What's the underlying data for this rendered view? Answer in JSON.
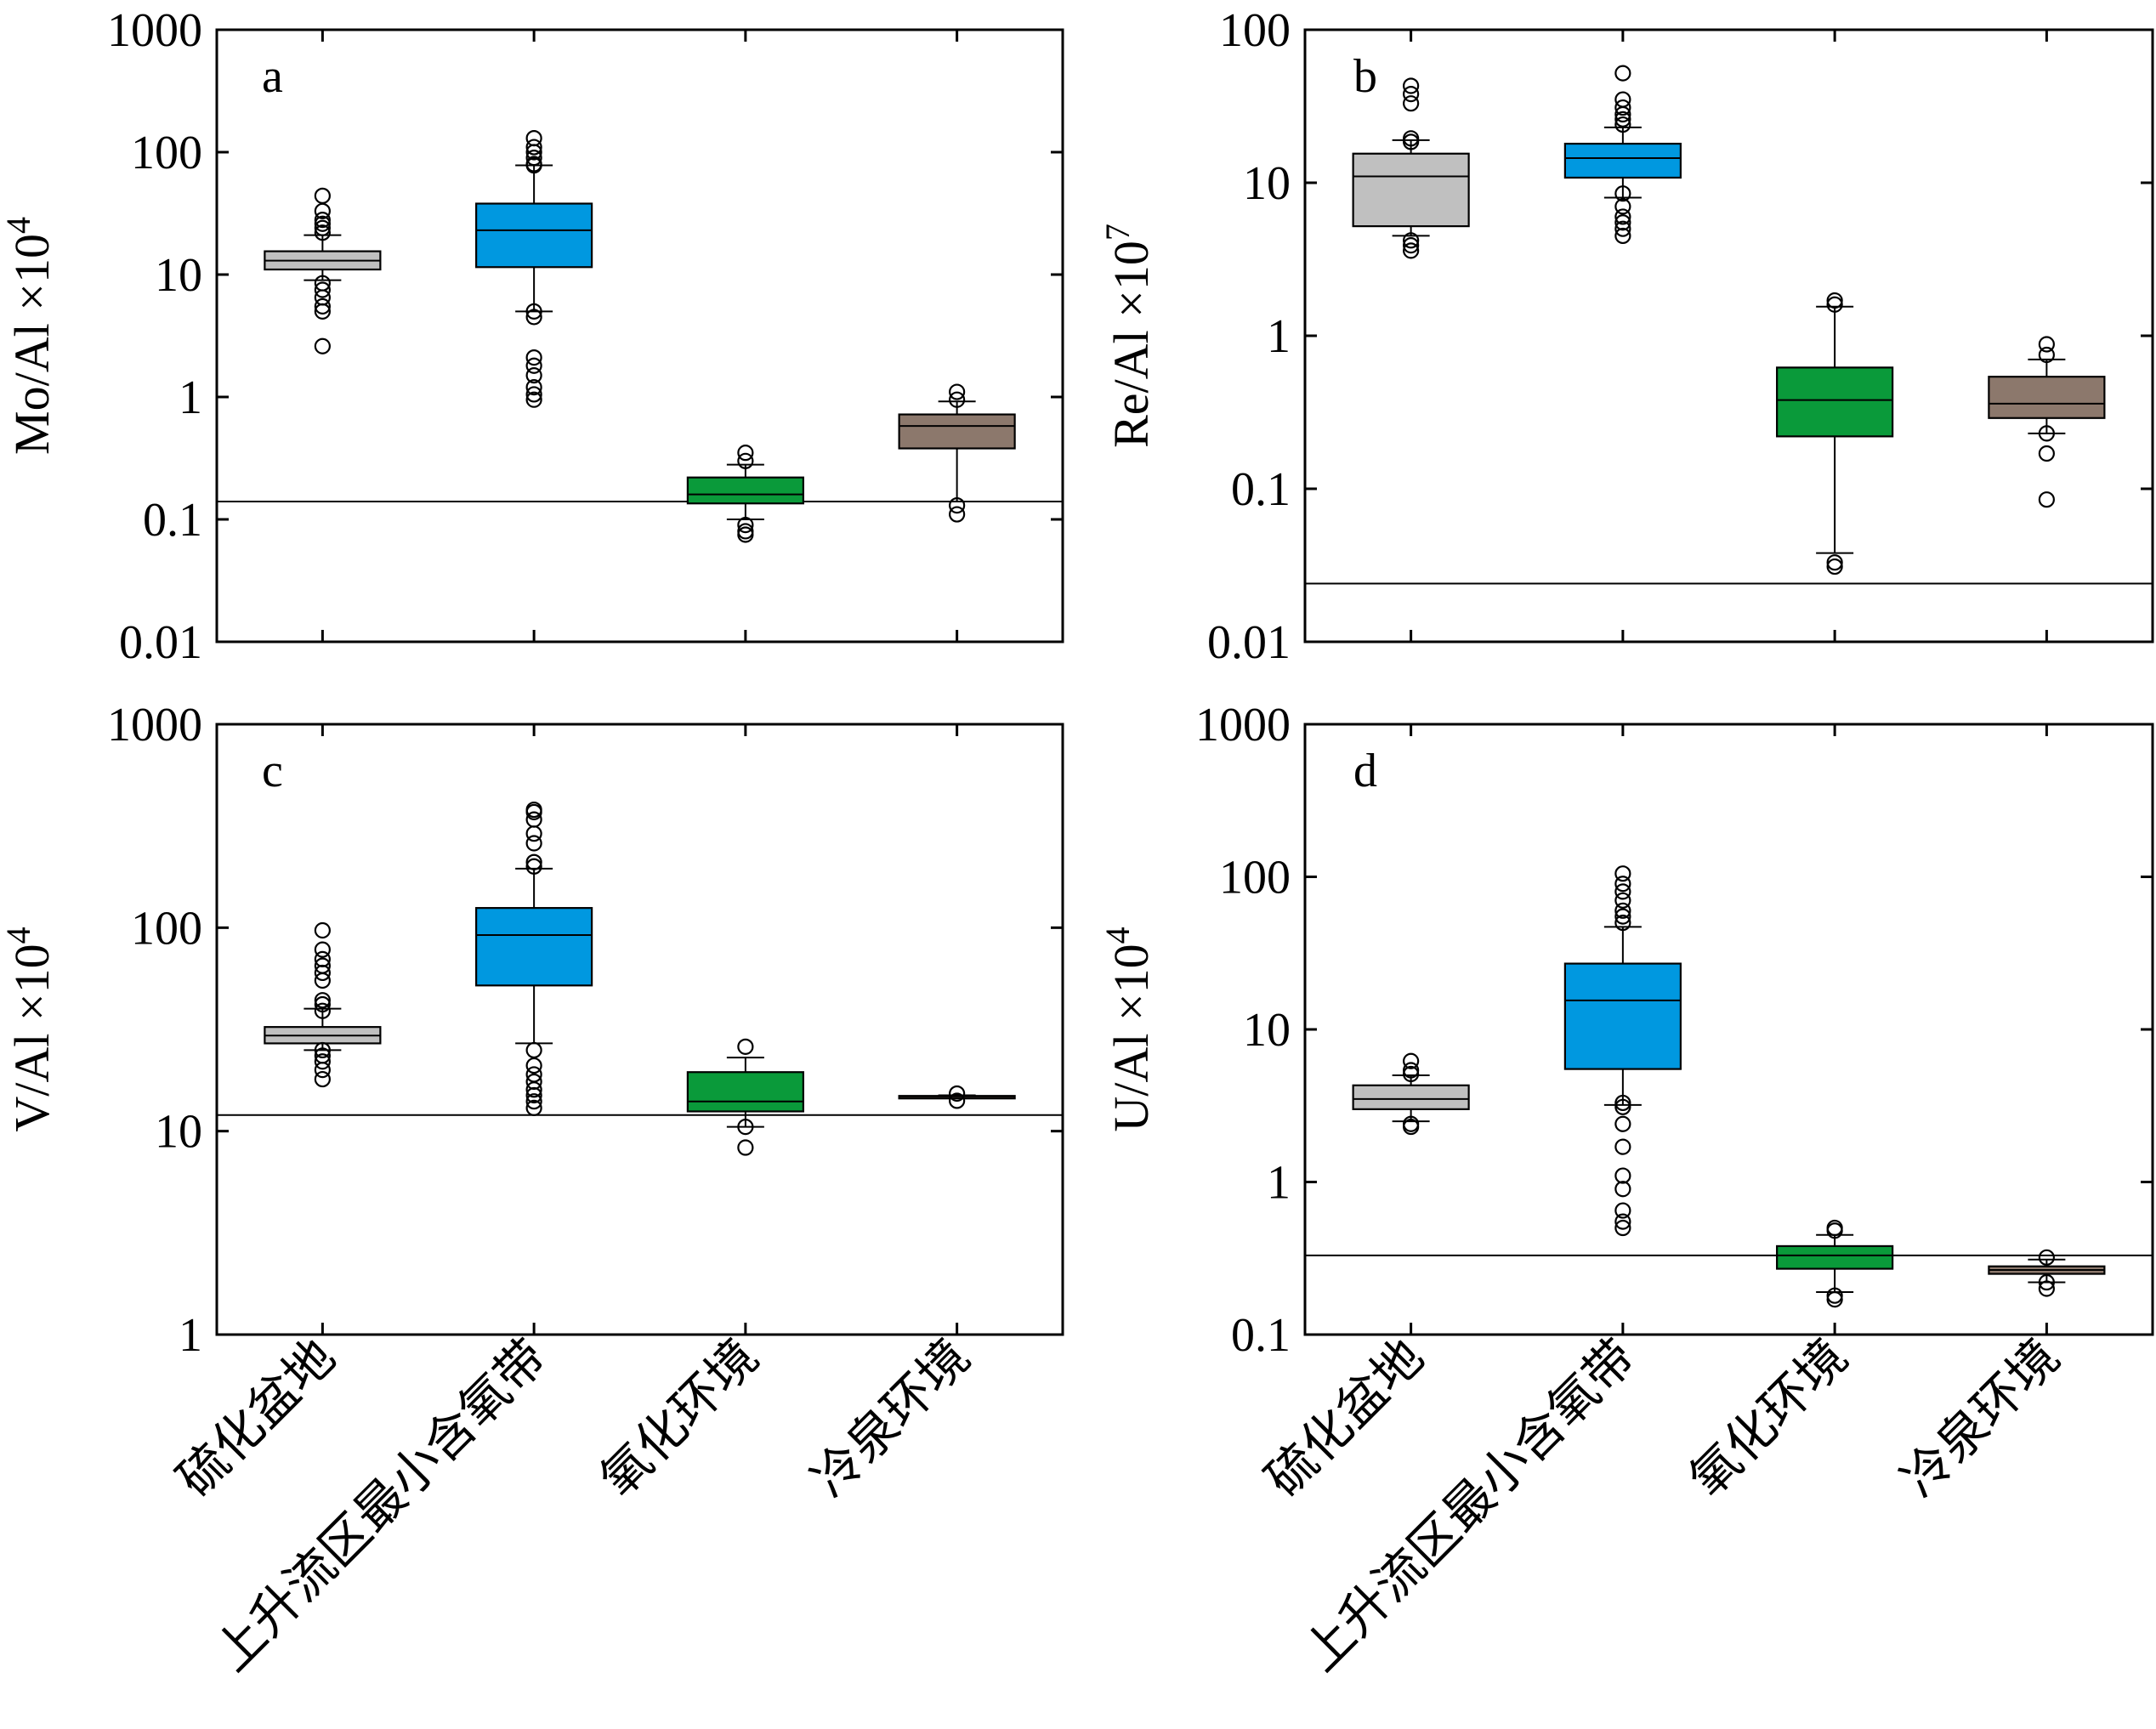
{
  "categories": [
    "硫化盆地",
    "上升流区最小含氧带",
    "氧化环境",
    "冷泉环境"
  ],
  "colors": {
    "硫化盆地": "#c0c0c0",
    "上升流区最小含氧带": "#0098e0",
    "氧化环境": "#0a9a3a",
    "冷泉环境": "#8c786c"
  },
  "chart_data": [
    {
      "panel": "a",
      "type": "box",
      "ylabel": "Mo/Al ×10⁴",
      "yscale": "log",
      "ylim": [
        0.01,
        1000
      ],
      "ticks": [
        "0.01",
        "0.1",
        "1",
        "10",
        "100",
        "1000"
      ],
      "tick_values": [
        0.01,
        0.1,
        1,
        10,
        100,
        1000
      ],
      "reference_line": 0.14,
      "series": [
        {
          "category": "硫化盆地",
          "whisker_low": 9,
          "q1": 11,
          "median": 13,
          "q3": 15.5,
          "whisker_high": 21,
          "outliers": [
            2.6,
            5,
            5.5,
            6.5,
            7.5,
            8.5,
            22,
            24,
            26,
            28,
            33,
            44
          ]
        },
        {
          "category": "上升流区最小含氧带",
          "whisker_low": 5,
          "q1": 11.5,
          "median": 23,
          "q3": 38,
          "whisker_high": 78,
          "outliers": [
            0.95,
            1.05,
            1.2,
            1.5,
            1.8,
            2.1,
            4.5,
            5,
            78,
            80,
            90,
            100,
            110,
            130
          ]
        },
        {
          "category": "氧化环境",
          "whisker_low": 0.1,
          "q1": 0.135,
          "median": 0.16,
          "q3": 0.22,
          "whisker_high": 0.28,
          "outliers": [
            0.075,
            0.08,
            0.09,
            0.3,
            0.35
          ]
        },
        {
          "category": "冷泉环境",
          "whisker_low": 0.14,
          "q1": 0.38,
          "median": 0.58,
          "q3": 0.72,
          "whisker_high": 0.92,
          "outliers": [
            0.11,
            0.13,
            0.95,
            1.1
          ]
        }
      ]
    },
    {
      "panel": "b",
      "type": "box",
      "ylabel": "Re/Al ×10⁷",
      "yscale": "log",
      "ylim": [
        0.01,
        100
      ],
      "ticks": [
        "0.01",
        "0.1",
        "1",
        "10",
        "100"
      ],
      "tick_values": [
        0.01,
        0.1,
        1,
        10,
        100
      ],
      "reference_line": 0.024,
      "series": [
        {
          "category": "硫化盆地",
          "whisker_low": 4.5,
          "q1": 5.2,
          "median": 11,
          "q3": 15.5,
          "whisker_high": 19,
          "outliers": [
            3.6,
            3.9,
            4.2,
            18.5,
            19.5,
            33,
            38,
            43
          ]
        },
        {
          "category": "上升流区最小含氧带",
          "whisker_low": 8,
          "q1": 10.8,
          "median": 14.5,
          "q3": 18,
          "whisker_high": 23,
          "outliers": [
            4.5,
            5,
            5.5,
            6,
            7,
            8.5,
            24,
            26,
            28,
            31,
            35,
            52
          ]
        },
        {
          "category": "氧化环境",
          "whisker_low": 0.038,
          "q1": 0.22,
          "median": 0.38,
          "q3": 0.62,
          "whisker_high": 1.55,
          "outliers": [
            0.031,
            0.033,
            1.6,
            1.7
          ]
        },
        {
          "category": "冷泉环境",
          "whisker_low": 0.23,
          "q1": 0.29,
          "median": 0.36,
          "q3": 0.54,
          "whisker_high": 0.7,
          "outliers": [
            0.085,
            0.17,
            0.23,
            0.75,
            0.88
          ]
        }
      ]
    },
    {
      "panel": "c",
      "type": "box",
      "ylabel": "V/Al ×10⁴",
      "yscale": "log",
      "ylim": [
        1,
        1000
      ],
      "ticks": [
        "1",
        "10",
        "100",
        "1000"
      ],
      "tick_values": [
        1,
        10,
        100,
        1000
      ],
      "reference_line": 12,
      "series": [
        {
          "category": "硫化盆地",
          "whisker_low": 25,
          "q1": 27,
          "median": 29.5,
          "q3": 32.5,
          "whisker_high": 40,
          "outliers": [
            18,
            20,
            22,
            23.5,
            25,
            39,
            42,
            44,
            55,
            60,
            65,
            70,
            78,
            97
          ]
        },
        {
          "category": "上升流区最小含氧带",
          "whisker_low": 27,
          "q1": 52,
          "median": 92,
          "q3": 125,
          "whisker_high": 195,
          "outliers": [
            13,
            14,
            15,
            16,
            17.5,
            19,
            21,
            25,
            200,
            210,
            260,
            290,
            340,
            370,
            380
          ]
        },
        {
          "category": "氧化环境",
          "whisker_low": 10.5,
          "q1": 12.5,
          "median": 14,
          "q3": 19.5,
          "whisker_high": 23,
          "outliers": [
            8.3,
            10.5,
            26
          ]
        },
        {
          "category": "冷泉环境",
          "whisker_low": 14.6,
          "q1": 14.7,
          "median": 14.8,
          "q3": 14.9,
          "whisker_high": 15,
          "outliers": [
            14.1,
            15.3
          ]
        }
      ]
    },
    {
      "panel": "d",
      "type": "box",
      "ylabel": "U/Al ×10⁴",
      "yscale": "log",
      "ylim": [
        0.1,
        1000
      ],
      "ticks": [
        "0.1",
        "1",
        "10",
        "100",
        "1000"
      ],
      "tick_values": [
        0.1,
        1,
        10,
        100,
        1000
      ],
      "reference_line": 0.33,
      "series": [
        {
          "category": "硫化盆地",
          "whisker_low": 2.5,
          "q1": 3,
          "median": 3.5,
          "q3": 4.3,
          "whisker_high": 5,
          "outliers": [
            2.3,
            2.4,
            5.1,
            5.4,
            6.2
          ]
        },
        {
          "category": "上升流区最小含氧带",
          "whisker_low": 3.2,
          "q1": 5.5,
          "median": 15.5,
          "q3": 27,
          "whisker_high": 47,
          "outliers": [
            0.5,
            0.55,
            0.65,
            0.9,
            1.1,
            1.7,
            2.4,
            3.1,
            3.3,
            50,
            55,
            60,
            70,
            80,
            90,
            105
          ]
        },
        {
          "category": "氧化环境",
          "whisker_low": 0.19,
          "q1": 0.27,
          "median": 0.33,
          "q3": 0.38,
          "whisker_high": 0.45,
          "outliers": [
            0.17,
            0.18,
            0.48,
            0.5
          ]
        },
        {
          "category": "冷泉环境",
          "whisker_low": 0.22,
          "q1": 0.25,
          "median": 0.265,
          "q3": 0.28,
          "whisker_high": 0.31,
          "outliers": [
            0.2,
            0.22,
            0.32
          ]
        }
      ]
    }
  ]
}
